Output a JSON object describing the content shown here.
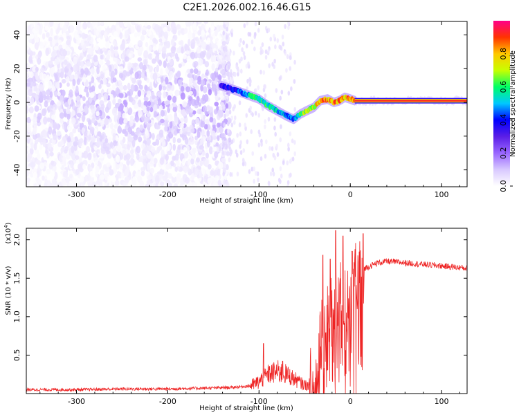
{
  "figure_title": "C2E1.2026.002.16.46.G15",
  "chart_data": [
    {
      "type": "heatmap",
      "title": "C2E1.2026.002.16.46.G15",
      "xlabel": "Height of straight line (km)",
      "ylabel": "Frequency (Hz)",
      "xlim": [
        -355,
        128
      ],
      "ylim": [
        -50,
        48
      ],
      "xticks": [
        -300,
        -200,
        -100,
        0,
        100
      ],
      "yticks": [
        -40,
        -20,
        0,
        20,
        40
      ],
      "colorbar": {
        "label": "Normalized spectral amplitude",
        "range": [
          0.0,
          1.0
        ],
        "ticks": [
          "0.0",
          "0.2",
          "0.4",
          "0.6",
          "0.8"
        ],
        "colormap": [
          "#ffffff",
          "#d8c8ff",
          "#9966ff",
          "#5a1ee6",
          "#0000ff",
          "#00c8ff",
          "#00ff66",
          "#c8ff00",
          "#ffc800",
          "#ff3300",
          "#ff0088"
        ]
      },
      "ridge": {
        "x": [
          -142,
          -130,
          -120,
          -110,
          -100,
          -90,
          -80,
          -70,
          -62,
          -55,
          -48,
          -40,
          -33,
          -25,
          -18,
          -12,
          -6,
          0,
          5,
          128
        ],
        "y": [
          10,
          8,
          6,
          4,
          2,
          -2,
          -5,
          -8,
          -10,
          -7,
          -5,
          -3,
          1,
          2,
          0,
          1,
          3,
          2,
          1,
          1
        ],
        "amplitude": [
          0.35,
          0.4,
          0.45,
          0.55,
          0.6,
          0.6,
          0.55,
          0.5,
          0.45,
          0.6,
          0.7,
          0.75,
          0.85,
          0.9,
          0.9,
          0.85,
          0.85,
          0.9,
          0.95,
          0.97
        ]
      },
      "noise_region": {
        "x_from": -355,
        "x_to": -142,
        "amplitude": 0.1
      }
    },
    {
      "type": "line",
      "xlabel": "Height of straight line (km)",
      "ylabel": "SNR (10 * v/v)",
      "yunit_label": "(x10",
      "yunit_exponent": "4",
      "xlim": [
        -355,
        128
      ],
      "ylim": [
        0,
        2.15
      ],
      "xticks": [
        -300,
        -200,
        -100,
        0,
        100
      ],
      "yticks": [
        "0.5",
        "1.0",
        "1.5",
        "2.0"
      ],
      "ytick_values": [
        0.5,
        1.0,
        1.5,
        2.0
      ],
      "color": "#ee2222",
      "series": [
        {
          "x": [
            -355,
            -300,
            -250,
            -200,
            -160,
            -130,
            -110,
            -100,
            -95,
            -90,
            -80,
            -70,
            -60,
            -52,
            -45,
            -40,
            -35,
            -30,
            -25,
            -20,
            -15,
            -10,
            -5,
            0,
            5,
            10,
            20,
            30,
            40,
            60,
            80,
            100,
            128
          ],
          "y": [
            0.05,
            0.05,
            0.06,
            0.06,
            0.07,
            0.08,
            0.1,
            0.15,
            0.2,
            0.25,
            0.28,
            0.25,
            0.18,
            0.12,
            0.1,
            0.2,
            0.5,
            0.8,
            1.0,
            1.1,
            1.2,
            1.25,
            1.3,
            1.4,
            1.5,
            1.6,
            1.65,
            1.7,
            1.72,
            1.7,
            1.68,
            1.66,
            1.63
          ]
        }
      ],
      "spikes": [
        {
          "x": -95,
          "y": 0.65
        },
        {
          "x": -74,
          "y": 0.42
        },
        {
          "x": -30,
          "y": 1.8
        },
        {
          "x": -22,
          "y": 1.75
        },
        {
          "x": -16,
          "y": 2.12
        },
        {
          "x": -8,
          "y": 2.05
        },
        {
          "x": 2,
          "y": 1.85
        },
        {
          "x": 14,
          "y": 2.08
        }
      ]
    }
  ]
}
